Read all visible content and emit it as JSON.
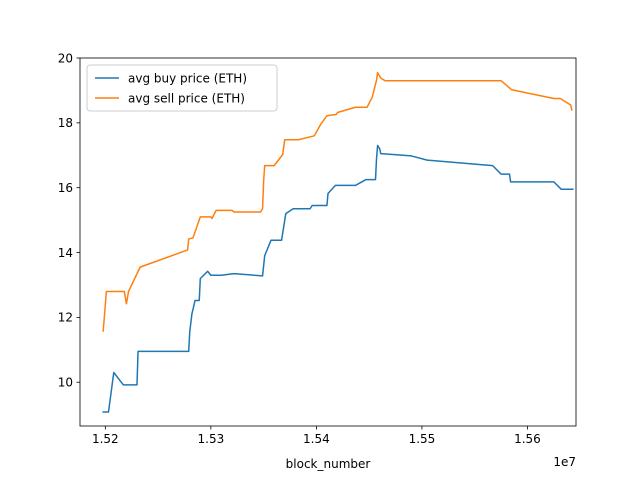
{
  "chart_data": {
    "type": "line",
    "xlabel": "block_number",
    "x_offset_label": "1e7",
    "ylabel": "",
    "xlim": [
      15176000,
      15646000
    ],
    "ylim": [
      8.65,
      20.0
    ],
    "x_ticks": [
      15200000,
      15300000,
      15400000,
      15500000,
      15600000
    ],
    "x_tick_labels": [
      "1.52",
      "1.53",
      "1.54",
      "1.55",
      "1.56"
    ],
    "y_ticks": [
      10,
      12,
      14,
      16,
      18,
      20
    ],
    "y_tick_labels": [
      "10",
      "12",
      "14",
      "16",
      "18",
      "20"
    ],
    "legend_position": "upper left",
    "series": [
      {
        "name": "avg buy price (ETH)",
        "color": "#1f77b4",
        "points": [
          [
            15198000,
            9.08
          ],
          [
            15203000,
            9.08
          ],
          [
            15208000,
            10.3
          ],
          [
            15217000,
            9.92
          ],
          [
            15230000,
            9.92
          ],
          [
            15231000,
            10.95
          ],
          [
            15279000,
            10.95
          ],
          [
            15280000,
            11.55
          ],
          [
            15282000,
            12.1
          ],
          [
            15285000,
            12.52
          ],
          [
            15289000,
            12.52
          ],
          [
            15290000,
            13.2
          ],
          [
            15297000,
            13.42
          ],
          [
            15300000,
            13.3
          ],
          [
            15310000,
            13.3
          ],
          [
            15322000,
            13.35
          ],
          [
            15349000,
            13.28
          ],
          [
            15351000,
            13.9
          ],
          [
            15357000,
            14.38
          ],
          [
            15367000,
            14.38
          ],
          [
            15371000,
            15.2
          ],
          [
            15378000,
            15.35
          ],
          [
            15394000,
            15.35
          ],
          [
            15396000,
            15.45
          ],
          [
            15410000,
            15.45
          ],
          [
            15411000,
            15.82
          ],
          [
            15418000,
            16.07
          ],
          [
            15437000,
            16.07
          ],
          [
            15447000,
            16.25
          ],
          [
            15456000,
            16.25
          ],
          [
            15457000,
            16.9
          ],
          [
            15458000,
            17.3
          ],
          [
            15460000,
            17.2
          ],
          [
            15461000,
            17.05
          ],
          [
            15490000,
            16.98
          ],
          [
            15505000,
            16.85
          ],
          [
            15567000,
            16.68
          ],
          [
            15575000,
            16.42
          ],
          [
            15583000,
            16.42
          ],
          [
            15584000,
            16.18
          ],
          [
            15625000,
            16.18
          ],
          [
            15632000,
            15.95
          ],
          [
            15643000,
            15.95
          ]
        ]
      },
      {
        "name": "avg sell price (ETH)",
        "color": "#ff7f0e",
        "points": [
          [
            15198000,
            11.58
          ],
          [
            15201000,
            12.8
          ],
          [
            15218000,
            12.8
          ],
          [
            15220000,
            12.42
          ],
          [
            15222000,
            12.8
          ],
          [
            15233000,
            13.55
          ],
          [
            15278000,
            14.08
          ],
          [
            15279000,
            14.42
          ],
          [
            15283000,
            14.45
          ],
          [
            15290000,
            15.1
          ],
          [
            15300000,
            15.1
          ],
          [
            15301000,
            15.05
          ],
          [
            15305000,
            15.3
          ],
          [
            15320000,
            15.3
          ],
          [
            15322000,
            15.25
          ],
          [
            15347000,
            15.25
          ],
          [
            15349000,
            15.35
          ],
          [
            15350000,
            16.2
          ],
          [
            15351000,
            16.68
          ],
          [
            15360000,
            16.68
          ],
          [
            15368000,
            17.02
          ],
          [
            15370000,
            17.48
          ],
          [
            15383000,
            17.48
          ],
          [
            15398000,
            17.6
          ],
          [
            15404000,
            17.95
          ],
          [
            15410000,
            18.22
          ],
          [
            15419000,
            18.26
          ],
          [
            15420000,
            18.32
          ],
          [
            15437000,
            18.48
          ],
          [
            15448000,
            18.48
          ],
          [
            15453000,
            18.8
          ],
          [
            15457000,
            19.32
          ],
          [
            15458000,
            19.55
          ],
          [
            15461000,
            19.38
          ],
          [
            15465000,
            19.3
          ],
          [
            15575000,
            19.3
          ],
          [
            15585000,
            19.02
          ],
          [
            15625000,
            18.75
          ],
          [
            15631000,
            18.75
          ],
          [
            15641000,
            18.55
          ],
          [
            15642000,
            18.4
          ]
        ]
      }
    ]
  }
}
